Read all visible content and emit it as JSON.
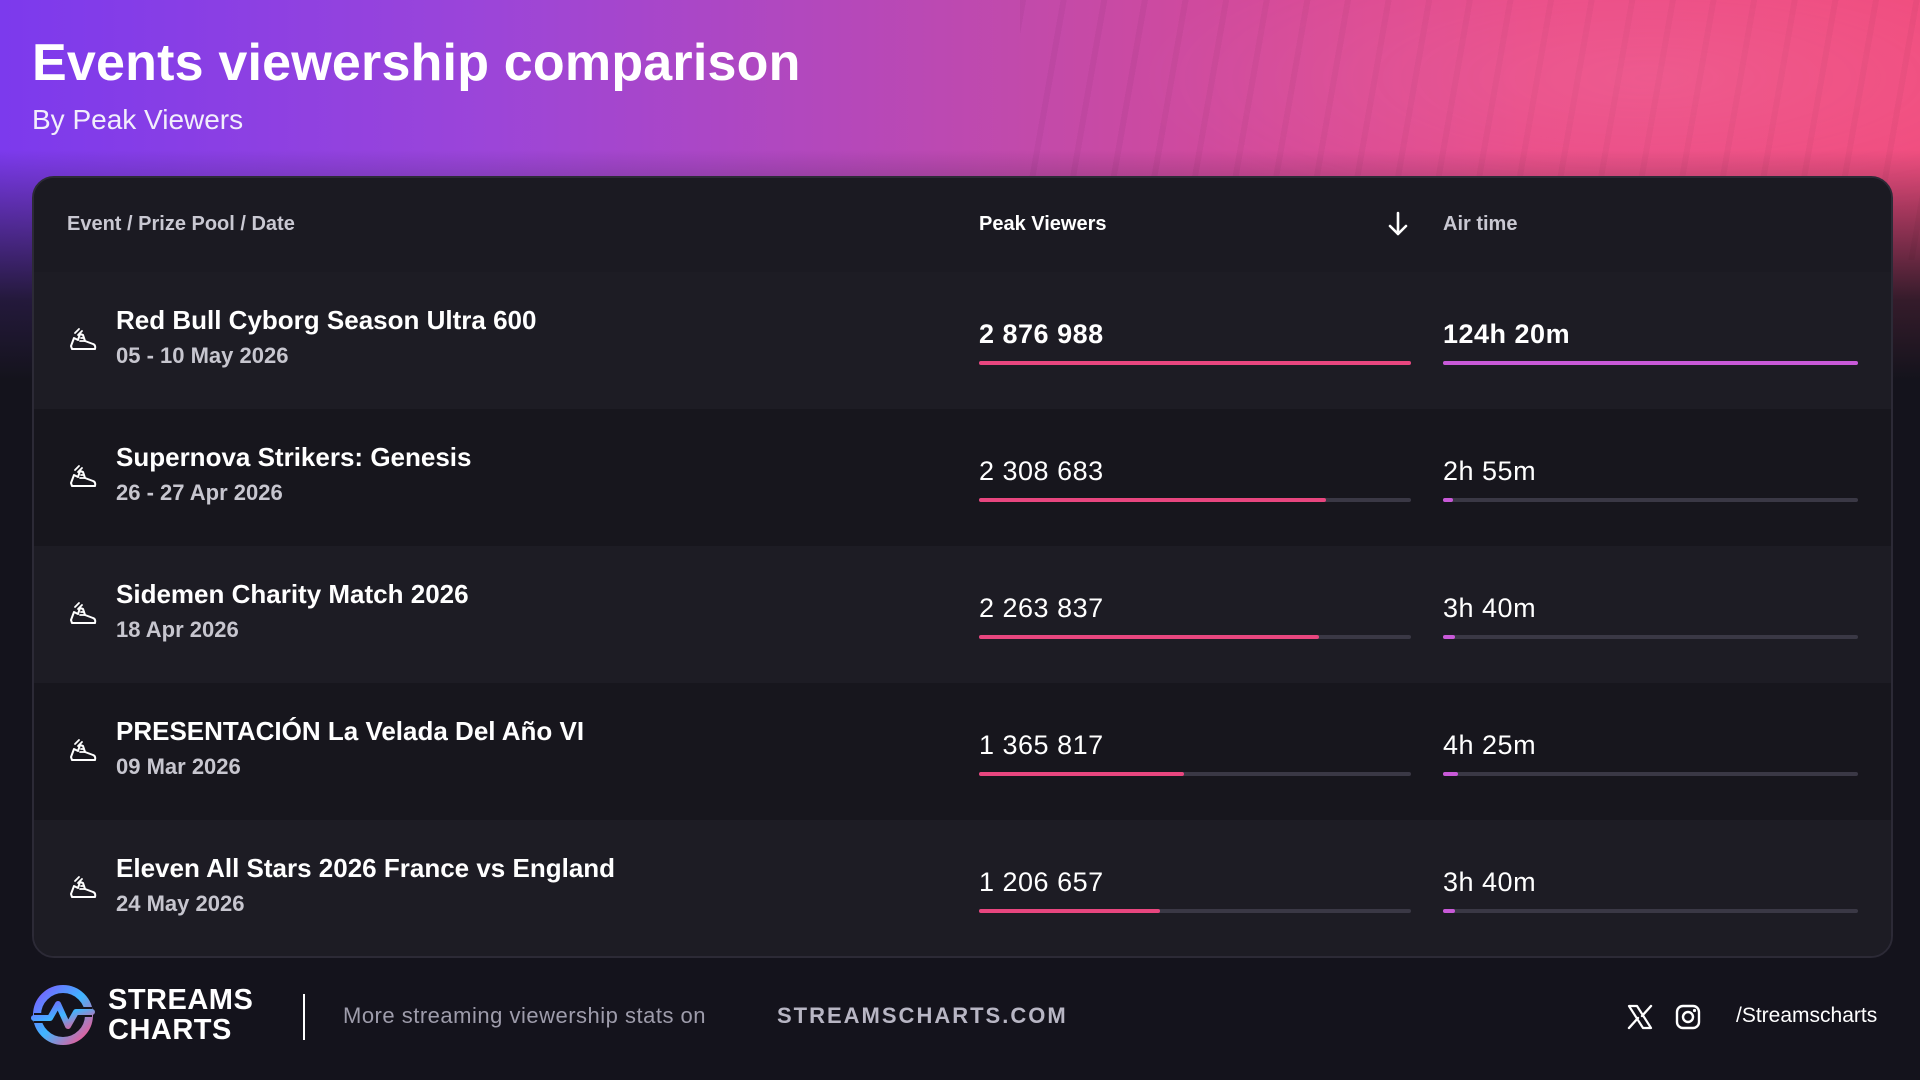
{
  "title": "Events viewership comparison",
  "subtitle": "By Peak Viewers",
  "table": {
    "headers": {
      "event": "Event / Prize Pool / Date",
      "peak": "Peak Viewers",
      "air": "Air time"
    },
    "sort_icon": "arrow-down-icon",
    "rows": [
      {
        "name": "Red Bull Cyborg Season Ultra 600",
        "date": "05 - 10 May 2026",
        "peak": "2 876 988",
        "peak_fraction": 1.0,
        "air": "124h 20m",
        "air_fraction": 1.0,
        "icon": "sneaker-icon"
      },
      {
        "name": "Supernova Strikers: Genesis",
        "date": "26 - 27 Apr 2026",
        "peak": "2 308 683",
        "peak_fraction": 0.8025,
        "air": "2h 55m",
        "air_fraction": 0.0235,
        "icon": "sneaker-icon"
      },
      {
        "name": "Sidemen Charity Match 2026",
        "date": "18 Apr 2026",
        "peak": "2 263 837",
        "peak_fraction": 0.7869,
        "air": "3h 40m",
        "air_fraction": 0.0295,
        "icon": "sneaker-icon"
      },
      {
        "name": "PRESENTACIÓN La Velada Del Año VI",
        "date": "09 Mar 2026",
        "peak": "1 365 817",
        "peak_fraction": 0.4747,
        "air": "4h 25m",
        "air_fraction": 0.0355,
        "icon": "sneaker-icon"
      },
      {
        "name": "Eleven All Stars 2026 France vs England",
        "date": "24 May 2026",
        "peak": "1 206 657",
        "peak_fraction": 0.4194,
        "air": "3h 40m",
        "air_fraction": 0.0295,
        "icon": "sneaker-icon"
      }
    ]
  },
  "footer": {
    "logo_line1": "STREAMS",
    "logo_line2": "CHARTS",
    "more_text": "More streaming viewership stats on",
    "site": "STREAMSCHARTS.COM",
    "handle": "/Streamscharts",
    "icons": [
      "x-logo-icon",
      "instagram-icon"
    ]
  },
  "colors": {
    "accent_peak": "#e8467f",
    "accent_air": "#c859d8",
    "gradient_left": "#7c3aed",
    "gradient_right": "#f04a7d",
    "background": "#14131c"
  }
}
